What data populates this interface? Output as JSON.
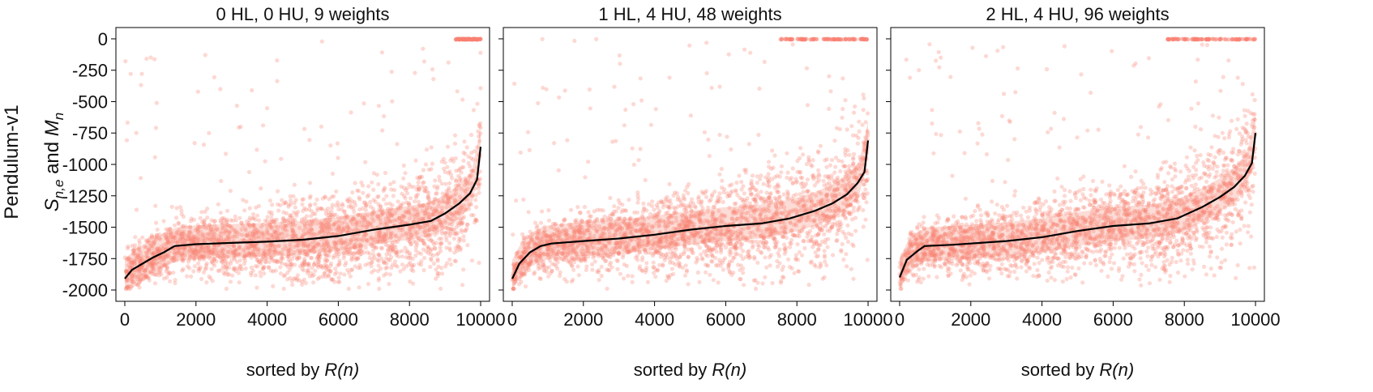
{
  "figure": {
    "row_label": "Pendulum-v1",
    "ylabel_parts": [
      "S",
      "n,e",
      " and ",
      "M",
      "n"
    ],
    "xlabel_prefix": "sorted by ",
    "xlabel_var": "R(n)",
    "colors": {
      "points": "#fa8072",
      "median": "#000000",
      "band": "#f9c0b4"
    }
  },
  "chart_data": [
    {
      "type": "scatter",
      "title": "0 HL, 0 HU, 9 weights",
      "xlim": [
        -250,
        10250
      ],
      "ylim": [
        -2090,
        90
      ],
      "xticks": [
        0,
        2000,
        4000,
        6000,
        8000,
        10000
      ],
      "yticks": [
        0,
        -250,
        -500,
        -750,
        -1000,
        -1250,
        -1500,
        -1750,
        -2000
      ],
      "series": [
        {
          "values_x": [
            0,
            200,
            500,
            800,
            1100,
            1400,
            2000,
            3000,
            4000,
            5000,
            6000,
            7000,
            8000,
            8600,
            9000,
            9400,
            9700,
            9900,
            10000
          ],
          "values_y": [
            -1910,
            -1840,
            -1790,
            -1740,
            -1700,
            -1650,
            -1635,
            -1625,
            -1615,
            -1600,
            -1570,
            -1520,
            -1480,
            -1450,
            -1390,
            -1310,
            -1230,
            -1120,
            -860
          ]
        }
      ]
    },
    {
      "type": "scatter",
      "title": "1 HL, 4 HU, 48 weights",
      "xlim": [
        -250,
        10250
      ],
      "ylim": [
        -2090,
        90
      ],
      "xticks": [
        0,
        2000,
        4000,
        6000,
        8000,
        10000
      ],
      "yticks": [
        0,
        -250,
        -500,
        -750,
        -1000,
        -1250,
        -1500,
        -1750,
        -2000
      ],
      "series": [
        {
          "values_x": [
            0,
            200,
            500,
            800,
            1100,
            2000,
            3000,
            4000,
            5000,
            6000,
            7000,
            7800,
            8500,
            9000,
            9400,
            9700,
            9900,
            10000
          ],
          "values_y": [
            -1910,
            -1790,
            -1700,
            -1650,
            -1630,
            -1610,
            -1590,
            -1560,
            -1520,
            -1490,
            -1470,
            -1430,
            -1370,
            -1310,
            -1240,
            -1150,
            -1060,
            -810
          ]
        }
      ]
    },
    {
      "type": "scatter",
      "title": "2 HL, 4 HU, 96 weights",
      "xlim": [
        -250,
        10250
      ],
      "ylim": [
        -2090,
        90
      ],
      "xticks": [
        0,
        2000,
        4000,
        6000,
        8000,
        10000
      ],
      "yticks": [
        0,
        -250,
        -500,
        -750,
        -1000,
        -1250,
        -1500,
        -1750,
        -2000
      ],
      "series": [
        {
          "values_x": [
            0,
            200,
            500,
            700,
            1500,
            3000,
            4000,
            5000,
            6000,
            7000,
            7800,
            8500,
            9000,
            9400,
            9700,
            9900,
            10000
          ],
          "values_y": [
            -1900,
            -1760,
            -1690,
            -1650,
            -1640,
            -1610,
            -1580,
            -1530,
            -1490,
            -1470,
            -1430,
            -1340,
            -1260,
            -1180,
            -1090,
            -990,
            -750
          ]
        }
      ]
    }
  ]
}
